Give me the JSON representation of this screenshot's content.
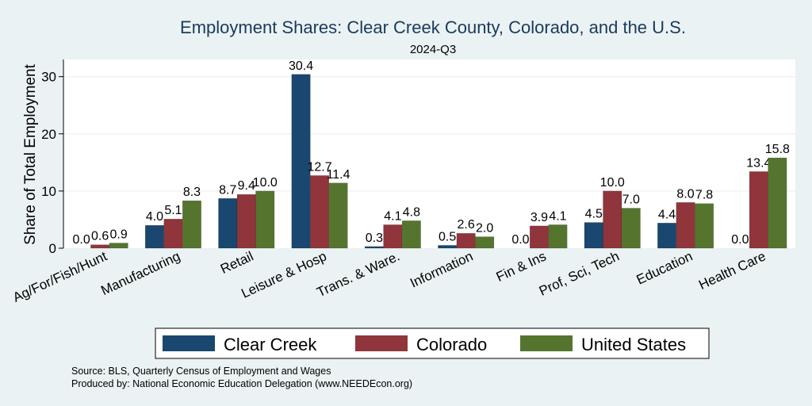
{
  "chart_data": {
    "type": "bar",
    "title": "Employment Shares: Clear Creek County, Colorado, and the U.S.",
    "subtitle": "2024-Q3",
    "ylabel": "Share of Total Employment",
    "xlabel": "",
    "ylim": [
      0,
      33
    ],
    "yticks": [
      0,
      10,
      20,
      30
    ],
    "grid": true,
    "legend_position": "bottom",
    "categories": [
      "Ag/For/Fish/Hunt",
      "Manufacturing",
      "Retail",
      "Leisure & Hosp",
      "Trans. & Ware.",
      "Information",
      "Fin & Ins",
      "Prof, Sci, Tech",
      "Education",
      "Health Care"
    ],
    "series": [
      {
        "name": "Clear Creek",
        "color": "#1a476f",
        "values": [
          0.0,
          4.0,
          8.7,
          30.4,
          0.3,
          0.5,
          0.0,
          4.5,
          4.4,
          0.0
        ]
      },
      {
        "name": "Colorado",
        "color": "#90353b",
        "values": [
          0.6,
          5.1,
          9.4,
          12.7,
          4.1,
          2.6,
          3.9,
          10.0,
          8.0,
          13.4
        ]
      },
      {
        "name": "United States",
        "color": "#55752f",
        "values": [
          0.9,
          8.3,
          10.0,
          11.4,
          4.8,
          2.0,
          4.1,
          7.0,
          7.8,
          15.8
        ]
      }
    ],
    "notes": [
      "Source: BLS, Quarterly Census of Employment and Wages",
      "Produced by: National Economic Education Delegation (www.NEEDEcon.org)"
    ]
  }
}
